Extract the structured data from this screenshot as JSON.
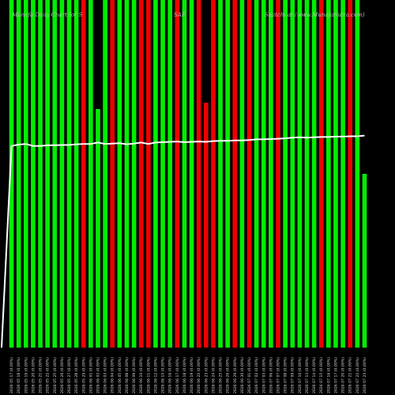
{
  "header": {
    "left": "Munafa Daily Chart for S",
    "middle": "SAF",
    "right": "Saatchi at (www.MunafaSutra.com)"
  },
  "colors": {
    "background": "#000000",
    "up": "#00ee00",
    "down": "#ee0000",
    "price_line": "#ffffff",
    "wick": "#8b5a1e"
  },
  "chart_data": {
    "type": "bar",
    "title": "",
    "xlabel": "",
    "ylabel": "",
    "ylim": [
      0,
      100
    ],
    "categories": [
      "2026 05 17 (0.00%)",
      "2026 05 18 (0.00%)",
      "2026 05 19 (0.00%)",
      "2026 05 20 (0.00%)",
      "2026 05 21 (0.00%)",
      "2026 05 22 (0.00%)",
      "2026 05 25 (0.00%)",
      "2026 05 26 (0.00%)",
      "2026 05 27 (0.00%)",
      "2026 05 28 (0.00%)",
      "2026 05 29 (0.00%)",
      "2026 06 01 (0.00%)",
      "2026 06 02 (0.00%)",
      "2026 06 03 (0.00%)",
      "2026 06 04 (0.00%)",
      "2026 06 05 (0.00%)",
      "2026 06 08 (0.00%)",
      "2026 06 09 (0.00%)",
      "2026 06 10 (0.00%)",
      "2026 06 11 (0.00%)",
      "2026 06 12 (0.00%)",
      "2026 06 15 (0.00%)",
      "2026 06 16 (0.00%)",
      "2026 06 17 (0.00%)",
      "2026 06 18 (0.00%)",
      "2026 06 19 (0.00%)",
      "2026 06 22 (0.00%)",
      "2026 06 23 (0.00%)",
      "2026 06 24 (0.00%)",
      "2026 06 25 (0.00%)",
      "2026 06 26 (0.00%)",
      "2026 06 29 (0.00%)",
      "2026 06 30 (0.00%)",
      "2026 07 01 (0.00%)",
      "2026 07 02 (0.00%)",
      "2026 07 03 (0.00%)",
      "2026 07 06 (0.00%)",
      "2026 07 07 (0.00%)",
      "2026 07 08 (0.00%)",
      "2026 07 09 (0.00%)",
      "2026 07 10 (0.00%)",
      "2026 07 13 (0.00%)",
      "2026 07 14 (0.00%)",
      "2026 07 15 (0.00%)",
      "2026 07 16 (0.00%)",
      "2026 07 17 (0.00%)",
      "2026 07 20 (0.00%)",
      "2026 07 21 (0.00%)",
      "2026 07 22 (0.00%)",
      "2026 07 23 (0.00%)"
    ],
    "series": [
      {
        "values": [
          100,
          100,
          100,
          100,
          100,
          100,
          100,
          100,
          100,
          100,
          100,
          100,
          100,
          100,
          100,
          100,
          100,
          100,
          100,
          100,
          100,
          100,
          100,
          100,
          100,
          100,
          100,
          100,
          100,
          100,
          100,
          100,
          100,
          100,
          100,
          100,
          100,
          100,
          100,
          100,
          100,
          100,
          100,
          100,
          100,
          100,
          100,
          100,
          100,
          50
        ],
        "direction": [
          "up",
          "up",
          "up",
          "up",
          "up",
          "up",
          "up",
          "up",
          "up",
          "up",
          "down",
          "up",
          "up",
          "up",
          "down",
          "up",
          "up",
          "up",
          "down",
          "down",
          "up",
          "up",
          "up",
          "down",
          "up",
          "up",
          "down",
          "down",
          "down",
          "up",
          "up",
          "down",
          "up",
          "down",
          "up",
          "up",
          "up",
          "down",
          "up",
          "up",
          "up",
          "up",
          "up",
          "down",
          "up",
          "up",
          "up",
          "down",
          "up",
          "up"
        ]
      }
    ],
    "overlay_line": [
      58,
      58.4,
      58.6,
      58,
      58,
      58.2,
      58.2,
      58.3,
      58.3,
      58.5,
      58.6,
      58.6,
      59,
      58.6,
      58.7,
      58.8,
      58.5,
      58.7,
      59,
      58.6,
      59,
      59.1,
      59.2,
      59.3,
      59.1,
      59.2,
      59.3,
      59.2,
      59.4,
      59.5,
      59.5,
      59.6,
      59.6,
      59.7,
      59.9,
      59.9,
      60,
      60.1,
      60.2,
      60.4,
      60.5,
      60.4,
      60.5,
      60.6,
      60.6,
      60.7,
      60.7,
      60.8,
      60.8,
      61
    ],
    "grid": false,
    "legend": "none"
  }
}
